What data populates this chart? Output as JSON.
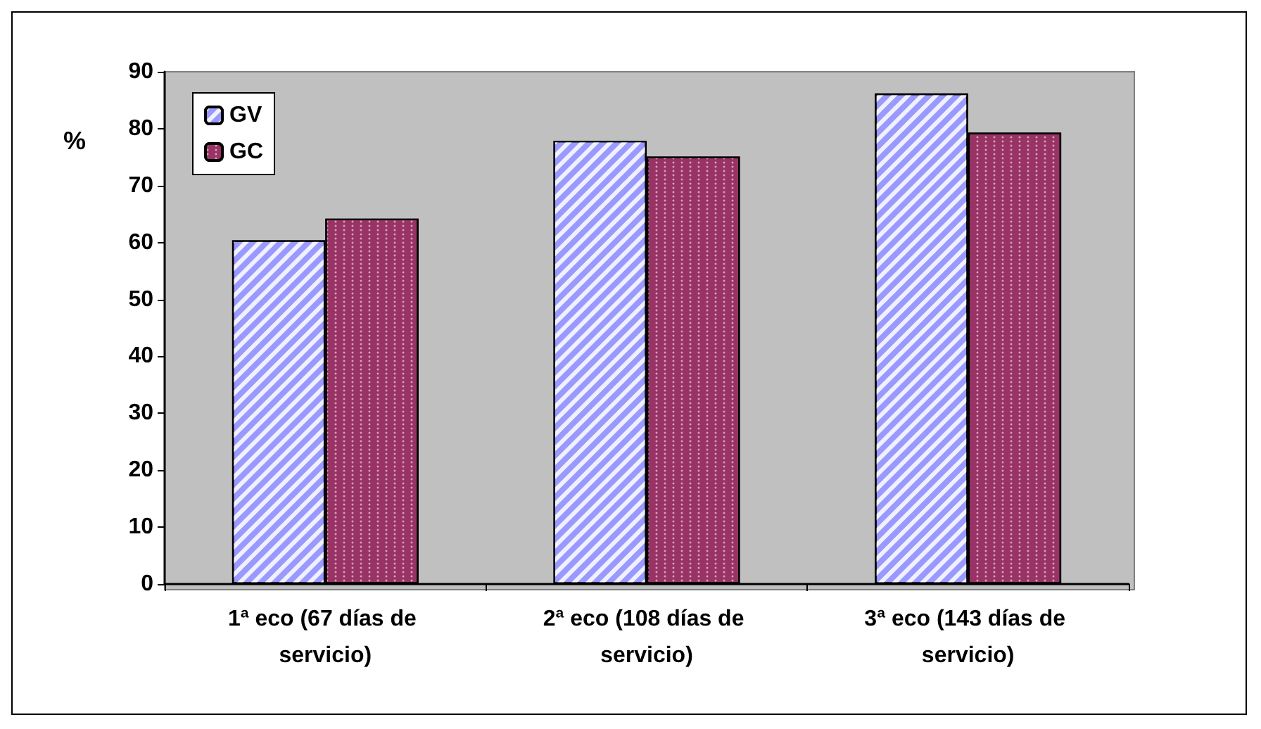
{
  "chart_data": {
    "type": "bar",
    "ylabel": "%",
    "categories": [
      "1ª eco (67 días de servicio)",
      "2ª eco (108 días de servicio)",
      "3ª eco (143 días de servicio)"
    ],
    "series": [
      {
        "name": "GV",
        "color": "#9999ff",
        "values": [
          60.4,
          77.9,
          86.2
        ]
      },
      {
        "name": "GC",
        "color": "#993366",
        "values": [
          64.2,
          75.1,
          79.3
        ]
      }
    ],
    "ylim": [
      0,
      90
    ],
    "yticks": [
      0,
      10,
      20,
      30,
      40,
      50,
      60,
      70,
      80,
      90
    ],
    "grid": false,
    "legend": "top left"
  }
}
